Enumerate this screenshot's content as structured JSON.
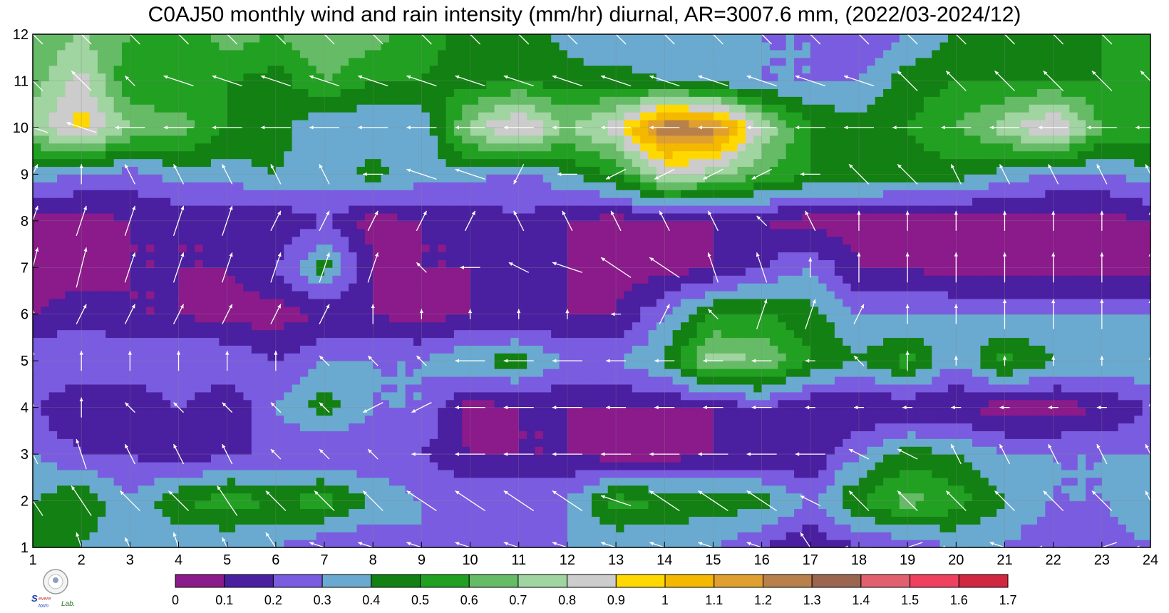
{
  "chart_data": {
    "type": "heatmap",
    "title": "C0AJ50 monthly wind and rain intensity (mm/hr) diurnal, AR=3007.6 mm, (2022/03-2024/12)",
    "x_ticks": [
      1,
      2,
      3,
      4,
      5,
      6,
      7,
      8,
      9,
      10,
      11,
      12,
      13,
      14,
      15,
      16,
      17,
      18,
      19,
      20,
      21,
      22,
      23,
      24
    ],
    "y_ticks": [
      1,
      2,
      3,
      4,
      5,
      6,
      7,
      8,
      9,
      10,
      11,
      12
    ],
    "xlim": [
      1,
      24
    ],
    "ylim": [
      1,
      12
    ],
    "x_meaning": "hour",
    "y_meaning": "month",
    "colorbar_levels": [
      "0",
      "0.1",
      "0.2",
      "0.3",
      "0.4",
      "0.5",
      "0.6",
      "0.7",
      "0.8",
      "0.9",
      "1",
      "1.1",
      "1.2",
      "1.3",
      "1.4",
      "1.5",
      "1.6",
      "1.7"
    ],
    "colorbar_colors": [
      "#8b1a8b",
      "#4a1fa0",
      "#7a5ce0",
      "#6aaad0",
      "#128012",
      "#22a022",
      "#66bb66",
      "#a0d4a0",
      "#cccccc",
      "#ffd800",
      "#f5b800",
      "#e0a030",
      "#b8804a",
      "#9a6650",
      "#e06070",
      "#f04060",
      "#d02840"
    ],
    "grid": true,
    "rain_rows": [
      [
        0.5,
        0.4,
        0.3,
        0.3,
        0.3,
        0.3,
        0.2,
        0.2,
        0.3,
        0.2,
        0.2,
        0.3,
        0.3,
        0.3,
        0.3,
        0.2,
        0.1,
        0.2,
        0.2,
        0.3,
        0.3,
        0.2,
        0.2,
        0.3
      ],
      [
        0.4,
        0.5,
        0.3,
        0.5,
        0.55,
        0.5,
        0.55,
        0.4,
        0.3,
        0.3,
        0.3,
        0.3,
        0.55,
        0.5,
        0.45,
        0.45,
        0.3,
        0.5,
        0.65,
        0.55,
        0.4,
        0.3,
        0.3,
        0.4
      ],
      [
        0.3,
        0.2,
        0.2,
        0.1,
        0.2,
        0.2,
        0.2,
        0.2,
        0.2,
        0.1,
        0.1,
        0.1,
        0.05,
        0.05,
        0.1,
        0.1,
        0.1,
        0.3,
        0.45,
        0.4,
        0.3,
        0.3,
        0.3,
        0.3
      ],
      [
        0.2,
        0.1,
        0.1,
        0.2,
        0.1,
        0.3,
        0.45,
        0.3,
        0.3,
        0.05,
        0.1,
        0.1,
        0.1,
        0.1,
        0.1,
        0.2,
        0.1,
        0.1,
        0.1,
        0.1,
        0.05,
        0.05,
        0.1,
        0.2
      ],
      [
        0.3,
        0.3,
        0.3,
        0.3,
        0.3,
        0.2,
        0.3,
        0.3,
        0.3,
        0.4,
        0.45,
        0.3,
        0.3,
        0.4,
        0.75,
        0.7,
        0.5,
        0.4,
        0.55,
        0.3,
        0.55,
        0.4,
        0.4,
        0.4
      ],
      [
        0.1,
        0.15,
        0.1,
        0.1,
        0.05,
        0.05,
        0.1,
        0.1,
        0.05,
        0.1,
        0.1,
        0.1,
        0.1,
        0.3,
        0.5,
        0.5,
        0.45,
        0.3,
        0.3,
        0.3,
        0.3,
        0.3,
        0.3,
        0.3
      ],
      [
        0.05,
        0.05,
        0.1,
        0.1,
        0.1,
        0.2,
        0.45,
        0.1,
        0.1,
        0.1,
        0.2,
        0.1,
        0.05,
        0.05,
        0.1,
        0.2,
        0.3,
        0.1,
        0.1,
        0.05,
        0.05,
        0.05,
        0.05,
        0.05
      ],
      [
        0.05,
        0.05,
        0.1,
        0.1,
        0.1,
        0.1,
        0.2,
        0.05,
        0.1,
        0.1,
        0.2,
        0.1,
        0.05,
        0.1,
        0.1,
        0.1,
        0.05,
        0.05,
        0.05,
        0.05,
        0.05,
        0.05,
        0.05,
        0.1
      ],
      [
        0.35,
        0.3,
        0.25,
        0.35,
        0.35,
        0.4,
        0.35,
        0.45,
        0.35,
        0.35,
        0.25,
        0.4,
        0.5,
        0.8,
        0.75,
        0.6,
        0.5,
        0.5,
        0.45,
        0.45,
        0.35,
        0.3,
        0.3,
        0.35
      ],
      [
        0.75,
        0.95,
        0.7,
        0.65,
        0.5,
        0.45,
        0.3,
        0.3,
        0.3,
        0.75,
        0.95,
        0.7,
        0.85,
        1.3,
        1.25,
        0.8,
        0.5,
        0.45,
        0.5,
        0.6,
        0.75,
        0.95,
        0.6,
        0.6
      ],
      [
        0.65,
        0.85,
        0.5,
        0.5,
        0.5,
        0.45,
        0.6,
        0.5,
        0.5,
        0.45,
        0.5,
        0.45,
        0.45,
        0.4,
        0.35,
        0.3,
        0.3,
        0.3,
        0.45,
        0.5,
        0.5,
        0.5,
        0.5,
        0.5
      ],
      [
        0.6,
        0.7,
        0.6,
        0.55,
        0.65,
        0.6,
        0.7,
        0.65,
        0.55,
        0.45,
        0.5,
        0.35,
        0.3,
        0.3,
        0.3,
        0.3,
        0.3,
        0.2,
        0.3,
        0.4,
        0.5,
        0.45,
        0.5,
        0.55
      ]
    ],
    "wind_rows": [
      [
        [
          -2,
          4
        ],
        [
          -1,
          3
        ],
        [
          -1,
          2
        ],
        [
          -1,
          3
        ],
        [
          -1,
          2
        ],
        [
          -2,
          3
        ],
        [
          -3,
          1
        ],
        [
          -3,
          1
        ],
        [
          -3,
          1
        ],
        [
          -3,
          1
        ],
        [
          -3,
          1
        ],
        [
          -3,
          1
        ],
        [
          -3,
          1
        ],
        [
          -3,
          1
        ],
        [
          -3,
          1
        ],
        [
          -3,
          1
        ],
        [
          -2,
          3
        ],
        [
          -3,
          0
        ],
        [
          -3,
          -1
        ],
        [
          -3,
          0
        ],
        [
          -3,
          1
        ],
        [
          -3,
          0
        ],
        [
          -3,
          -1
        ],
        [
          -3,
          0
        ]
      ],
      [
        [
          -2,
          3
        ],
        [
          -2,
          3
        ],
        [
          -2,
          2
        ],
        [
          -2,
          2
        ],
        [
          -2,
          3
        ],
        [
          -2,
          2
        ],
        [
          -2,
          2
        ],
        [
          -2,
          2
        ],
        [
          -3,
          2
        ],
        [
          -3,
          2
        ],
        [
          -3,
          2
        ],
        [
          -3,
          2
        ],
        [
          -3,
          1
        ],
        [
          -3,
          2
        ],
        [
          -3,
          2
        ],
        [
          -3,
          2
        ],
        [
          -2,
          1
        ],
        [
          -2,
          2
        ],
        [
          -2,
          2
        ],
        [
          -2,
          2
        ],
        [
          -2,
          2
        ],
        [
          -2,
          2
        ],
        [
          -2,
          2
        ],
        [
          -1,
          2
        ]
      ],
      [
        [
          -1,
          2
        ],
        [
          -1,
          3
        ],
        [
          -1,
          2
        ],
        [
          -1,
          2
        ],
        [
          -1,
          2
        ],
        [
          -1,
          1
        ],
        [
          -1,
          1
        ],
        [
          -1,
          1
        ],
        [
          -2,
          0
        ],
        [
          -3,
          0
        ],
        [
          -3,
          0
        ],
        [
          -3,
          0
        ],
        [
          -3,
          0
        ],
        [
          -3,
          0
        ],
        [
          -3,
          0
        ],
        [
          -3,
          0
        ],
        [
          -3,
          0
        ],
        [
          -2,
          1
        ],
        [
          -2,
          1
        ],
        [
          -1,
          2
        ],
        [
          -1,
          2
        ],
        [
          -1,
          2
        ],
        [
          -1,
          2
        ],
        [
          -1,
          2
        ]
      ],
      [
        [
          0,
          1
        ],
        [
          0,
          2
        ],
        [
          -1,
          1
        ],
        [
          -1,
          1
        ],
        [
          -1,
          1
        ],
        [
          -1,
          1
        ],
        [
          -1,
          1
        ],
        [
          -2,
          -1
        ],
        [
          -2,
          -1
        ],
        [
          -3,
          0
        ],
        [
          -3,
          0
        ],
        [
          -3,
          0
        ],
        [
          -2,
          0
        ],
        [
          -2,
          0
        ],
        [
          -2,
          0
        ],
        [
          -2,
          0
        ],
        [
          -1,
          0
        ],
        [
          -1,
          0
        ],
        [
          -1,
          0
        ],
        [
          -1,
          0
        ],
        [
          -1,
          0
        ],
        [
          -1,
          0
        ],
        [
          -1,
          0
        ],
        [
          0,
          1
        ]
      ],
      [
        [
          0,
          2
        ],
        [
          0,
          2
        ],
        [
          0,
          2
        ],
        [
          0,
          2
        ],
        [
          0,
          2
        ],
        [
          0,
          2
        ],
        [
          -1,
          1
        ],
        [
          -1,
          1
        ],
        [
          -1,
          1
        ],
        [
          -3,
          0
        ],
        [
          -3,
          0
        ],
        [
          -3,
          0
        ],
        [
          -2,
          0
        ],
        [
          -2,
          0
        ],
        [
          -2,
          0
        ],
        [
          -2,
          0
        ],
        [
          -1,
          0
        ],
        [
          -1,
          1
        ],
        [
          0,
          2
        ],
        [
          0,
          1
        ],
        [
          0,
          1
        ],
        [
          0,
          1
        ],
        [
          0,
          1
        ],
        [
          0,
          1
        ]
      ],
      [
        [
          0,
          1
        ],
        [
          1,
          2
        ],
        [
          1,
          2
        ],
        [
          1,
          2
        ],
        [
          1,
          2
        ],
        [
          1,
          2
        ],
        [
          1,
          2
        ],
        [
          0,
          2
        ],
        [
          0,
          1
        ],
        [
          0,
          1
        ],
        [
          0,
          1
        ],
        [
          0,
          1
        ],
        [
          -1,
          0
        ],
        [
          1,
          2
        ],
        [
          -1,
          1
        ],
        [
          1,
          3
        ],
        [
          1,
          3
        ],
        [
          1,
          2
        ],
        [
          0,
          2
        ],
        [
          0,
          2
        ],
        [
          0,
          3
        ],
        [
          0,
          3
        ],
        [
          0,
          3
        ],
        [
          0,
          3
        ]
      ],
      [
        [
          1,
          4
        ],
        [
          1,
          4
        ],
        [
          1,
          3
        ],
        [
          1,
          3
        ],
        [
          1,
          3
        ],
        [
          1,
          3
        ],
        [
          1,
          3
        ],
        [
          1,
          3
        ],
        [
          -1,
          1
        ],
        [
          -2,
          0
        ],
        [
          -2,
          1
        ],
        [
          -3,
          1
        ],
        [
          -3,
          2
        ],
        [
          -3,
          2
        ],
        [
          -1,
          3
        ],
        [
          -1,
          3
        ],
        [
          0,
          2
        ],
        [
          0,
          3
        ],
        [
          0,
          3
        ],
        [
          0,
          3
        ],
        [
          0,
          3
        ],
        [
          0,
          3
        ],
        [
          0,
          3
        ],
        [
          0,
          3
        ]
      ],
      [
        [
          1,
          3
        ],
        [
          1,
          3
        ],
        [
          1,
          3
        ],
        [
          1,
          3
        ],
        [
          1,
          3
        ],
        [
          1,
          2
        ],
        [
          1,
          2
        ],
        [
          1,
          2
        ],
        [
          1,
          2
        ],
        [
          1,
          2
        ],
        [
          -1,
          2
        ],
        [
          -1,
          2
        ],
        [
          -1,
          2
        ],
        [
          -1,
          2
        ],
        [
          -1,
          2
        ],
        [
          -1,
          1
        ],
        [
          -1,
          2
        ],
        [
          0,
          2
        ],
        [
          0,
          2
        ],
        [
          0,
          2
        ],
        [
          0,
          2
        ],
        [
          0,
          2
        ],
        [
          0,
          2
        ],
        [
          0,
          2
        ]
      ],
      [
        [
          1,
          2
        ],
        [
          0,
          2
        ],
        [
          -1,
          2
        ],
        [
          -1,
          2
        ],
        [
          -1,
          2
        ],
        [
          -1,
          2
        ],
        [
          -1,
          2
        ],
        [
          -2,
          0
        ],
        [
          -3,
          1
        ],
        [
          -3,
          1
        ],
        [
          -1,
          -2
        ],
        [
          -2,
          0
        ],
        [
          -2,
          -1
        ],
        [
          -2,
          -1
        ],
        [
          -2,
          -1
        ],
        [
          -2,
          -1
        ],
        [
          -2,
          0
        ],
        [
          -2,
          2
        ],
        [
          -2,
          2
        ],
        [
          -1,
          2
        ],
        [
          -1,
          2
        ],
        [
          -1,
          2
        ],
        [
          -1,
          2
        ],
        [
          -1,
          2
        ]
      ],
      [
        [
          -3,
          1
        ],
        [
          -3,
          1
        ],
        [
          -3,
          0
        ],
        [
          -3,
          0
        ],
        [
          -3,
          0
        ],
        [
          -3,
          0
        ],
        [
          -3,
          0
        ],
        [
          -3,
          0
        ],
        [
          -3,
          0
        ],
        [
          -3,
          0
        ],
        [
          -3,
          0
        ],
        [
          -3,
          0
        ],
        [
          -3,
          0
        ],
        [
          -3,
          0
        ],
        [
          -3,
          0
        ],
        [
          -3,
          0
        ],
        [
          -3,
          0
        ],
        [
          -3,
          0
        ],
        [
          -3,
          0
        ],
        [
          -3,
          0
        ],
        [
          -3,
          0
        ],
        [
          -3,
          0
        ],
        [
          -3,
          0
        ],
        [
          -3,
          0
        ]
      ],
      [
        [
          -2,
          2
        ],
        [
          -2,
          2
        ],
        [
          -1,
          1
        ],
        [
          -3,
          1
        ],
        [
          -3,
          1
        ],
        [
          -3,
          1
        ],
        [
          -3,
          1
        ],
        [
          -3,
          1
        ],
        [
          -3,
          1
        ],
        [
          -3,
          1
        ],
        [
          -3,
          1
        ],
        [
          -3,
          1
        ],
        [
          -3,
          1
        ],
        [
          -3,
          1
        ],
        [
          -3,
          1
        ],
        [
          -3,
          1
        ],
        [
          -3,
          1
        ],
        [
          -3,
          1
        ],
        [
          -2,
          2
        ],
        [
          -2,
          2
        ],
        [
          -2,
          2
        ],
        [
          -2,
          2
        ],
        [
          -2,
          2
        ],
        [
          -2,
          2
        ]
      ],
      [
        [
          -2,
          2
        ],
        [
          -2,
          2
        ],
        [
          -2,
          2
        ],
        [
          -2,
          2
        ],
        [
          -2,
          2
        ],
        [
          -2,
          2
        ],
        [
          -2,
          2
        ],
        [
          -2,
          2
        ],
        [
          -2,
          2
        ],
        [
          -2,
          2
        ],
        [
          -2,
          2
        ],
        [
          -2,
          2
        ],
        [
          -2,
          2
        ],
        [
          -2,
          2
        ],
        [
          -2,
          2
        ],
        [
          -2,
          2
        ],
        [
          -2,
          2
        ],
        [
          -2,
          2
        ],
        [
          -2,
          2
        ],
        [
          -2,
          2
        ],
        [
          -2,
          2
        ],
        [
          -2,
          2
        ],
        [
          -2,
          2
        ],
        [
          -2,
          2
        ]
      ]
    ]
  }
}
